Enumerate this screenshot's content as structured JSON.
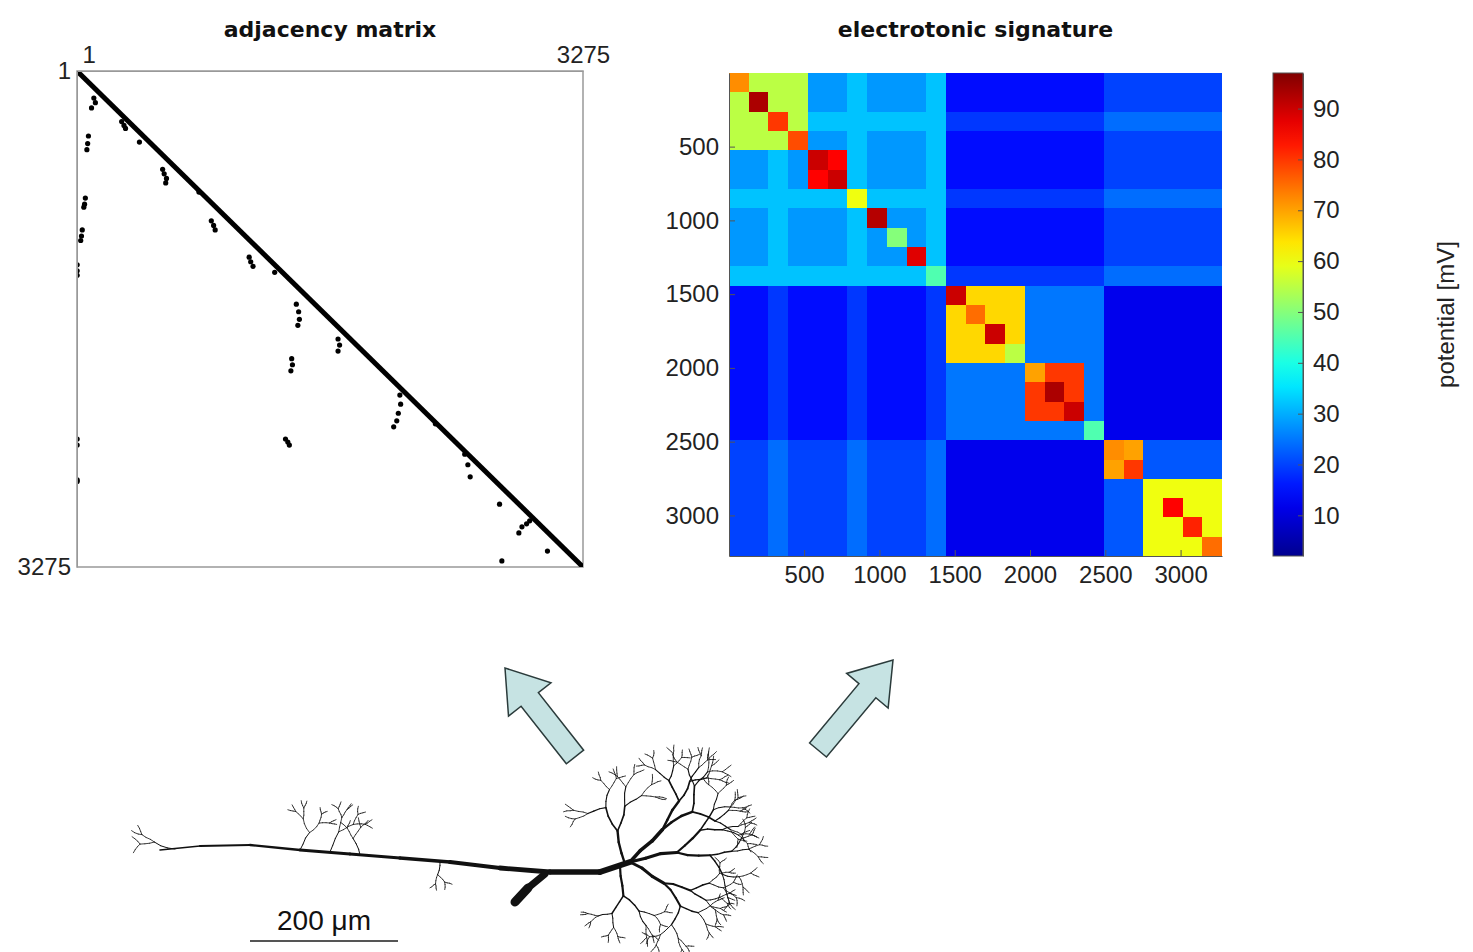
{
  "chart_data": [
    {
      "type": "scatter",
      "title": "adjacency matrix",
      "xlim": [
        1,
        3275
      ],
      "ylim": [
        3275,
        1
      ],
      "xticks": [
        1,
        3275
      ],
      "yticks": [
        1,
        3275
      ],
      "series": [
        {
          "type": "line",
          "color": "#000000",
          "x": [
            1,
            3275
          ],
          "values": [
            1,
            3275
          ]
        },
        {
          "type": "scatter",
          "color": "#000000",
          "marker": "circle",
          "x": [
            110,
            120,
            95,
            75,
            70,
            65,
            55,
            50,
            45,
            35,
            30,
            25,
            2,
            2,
            2,
            290,
            305,
            315,
            405,
            555,
            565,
            580,
            575,
            790,
            870,
            885,
            895,
            1115,
            1125,
            1140,
            1280,
            1420,
            1435,
            1440,
            1430,
            1390,
            1395,
            1385,
            1690,
            1700,
            1690,
            1350,
            1365,
            1375,
            2090,
            2095,
            2080,
            2070,
            2050,
            2320,
            2510,
            2530,
            2545,
            2735,
            2860,
            2880,
            2910,
            2930,
            2750,
            3045,
            2,
            2,
            2,
            2
          ],
          "values": [
            180,
            210,
            245,
            430,
            480,
            520,
            840,
            880,
            900,
            1050,
            1090,
            1120,
            1280,
            1320,
            1350,
            335,
            360,
            380,
            470,
            650,
            680,
            710,
            740,
            800,
            990,
            1020,
            1050,
            1230,
            1260,
            1290,
            1330,
            1540,
            1590,
            1640,
            1680,
            1900,
            1940,
            1980,
            1770,
            1810,
            1850,
            2430,
            2450,
            2470,
            2140,
            2200,
            2260,
            2310,
            2350,
            2330,
            2530,
            2600,
            2680,
            2860,
            3050,
            3010,
            2990,
            2970,
            3235,
            3170,
            2430,
            2470,
            2700,
            2710
          ]
        }
      ]
    },
    {
      "type": "heatmap",
      "title": "electrotonic signature",
      "xlim": [
        1,
        3275
      ],
      "ylim": [
        3275,
        1
      ],
      "xticks": [
        500,
        1000,
        1500,
        2000,
        2500,
        3000
      ],
      "yticks": [
        500,
        1000,
        1500,
        2000,
        2500,
        3000
      ],
      "bins": [
        1,
        132,
        263,
        394,
        525,
        656,
        787,
        918,
        1049,
        1180,
        1311,
        1442,
        1573,
        1704,
        1835,
        1966,
        2097,
        2228,
        2359,
        2490,
        2621,
        2752,
        2883,
        3014,
        3145,
        3275
      ],
      "cells": [
        [
          72,
          55,
          55,
          55,
          28,
          28,
          32,
          28,
          28,
          28,
          32,
          15,
          15,
          15,
          15,
          15,
          15,
          15,
          15,
          20,
          20,
          20,
          20,
          20,
          20
        ],
        [
          55,
          93,
          55,
          55,
          28,
          28,
          32,
          28,
          28,
          28,
          32,
          15,
          15,
          15,
          15,
          15,
          15,
          15,
          15,
          20,
          20,
          20,
          20,
          20,
          20
        ],
        [
          55,
          55,
          80,
          55,
          32,
          32,
          32,
          32,
          32,
          32,
          32,
          19,
          19,
          19,
          19,
          19,
          19,
          19,
          19,
          24,
          24,
          24,
          24,
          24,
          24
        ],
        [
          55,
          55,
          55,
          78,
          28,
          28,
          32,
          28,
          28,
          28,
          32,
          15,
          15,
          15,
          15,
          15,
          15,
          15,
          15,
          20,
          20,
          20,
          20,
          20,
          20
        ],
        [
          28,
          28,
          32,
          28,
          90,
          85,
          32,
          28,
          28,
          28,
          32,
          15,
          15,
          15,
          15,
          15,
          15,
          15,
          15,
          20,
          20,
          20,
          20,
          20,
          20
        ],
        [
          28,
          28,
          32,
          28,
          85,
          90,
          32,
          28,
          28,
          28,
          32,
          15,
          15,
          15,
          15,
          15,
          15,
          15,
          15,
          20,
          20,
          20,
          20,
          20,
          20
        ],
        [
          32,
          32,
          32,
          32,
          32,
          32,
          60,
          32,
          32,
          32,
          32,
          19,
          19,
          19,
          19,
          19,
          19,
          19,
          19,
          24,
          24,
          24,
          24,
          24,
          24
        ],
        [
          28,
          28,
          32,
          28,
          28,
          28,
          32,
          92,
          28,
          28,
          32,
          15,
          15,
          15,
          15,
          15,
          15,
          15,
          15,
          20,
          20,
          20,
          20,
          20,
          20
        ],
        [
          28,
          28,
          32,
          28,
          28,
          28,
          32,
          28,
          50,
          28,
          32,
          15,
          15,
          15,
          15,
          15,
          15,
          15,
          15,
          20,
          20,
          20,
          20,
          20,
          20
        ],
        [
          28,
          28,
          32,
          28,
          28,
          28,
          32,
          28,
          28,
          88,
          32,
          15,
          15,
          15,
          15,
          15,
          15,
          15,
          15,
          20,
          20,
          20,
          20,
          20,
          20
        ],
        [
          32,
          32,
          32,
          32,
          32,
          32,
          32,
          32,
          32,
          32,
          45,
          19,
          19,
          19,
          19,
          19,
          19,
          19,
          19,
          24,
          24,
          24,
          24,
          24,
          24
        ],
        [
          15,
          15,
          19,
          15,
          15,
          15,
          19,
          15,
          15,
          15,
          19,
          90,
          65,
          65,
          65,
          25,
          25,
          25,
          25,
          12,
          12,
          12,
          12,
          12,
          12
        ],
        [
          15,
          15,
          19,
          15,
          15,
          15,
          19,
          15,
          15,
          15,
          19,
          65,
          75,
          65,
          65,
          25,
          25,
          25,
          25,
          12,
          12,
          12,
          12,
          12,
          12
        ],
        [
          15,
          15,
          19,
          15,
          15,
          15,
          19,
          15,
          15,
          15,
          19,
          65,
          65,
          90,
          65,
          25,
          25,
          25,
          25,
          12,
          12,
          12,
          12,
          12,
          12
        ],
        [
          15,
          15,
          19,
          15,
          15,
          15,
          19,
          15,
          15,
          15,
          19,
          65,
          65,
          65,
          55,
          25,
          25,
          25,
          25,
          12,
          12,
          12,
          12,
          12,
          12
        ],
        [
          15,
          15,
          19,
          15,
          15,
          15,
          19,
          15,
          15,
          15,
          19,
          25,
          25,
          25,
          25,
          70,
          80,
          80,
          25,
          12,
          12,
          12,
          12,
          12,
          12
        ],
        [
          15,
          15,
          19,
          15,
          15,
          15,
          19,
          15,
          15,
          15,
          19,
          25,
          25,
          25,
          25,
          80,
          93,
          80,
          25,
          12,
          12,
          12,
          12,
          12,
          12
        ],
        [
          15,
          15,
          19,
          15,
          15,
          15,
          19,
          15,
          15,
          15,
          19,
          25,
          25,
          25,
          25,
          80,
          80,
          90,
          25,
          12,
          12,
          12,
          12,
          12,
          12
        ],
        [
          15,
          15,
          19,
          15,
          15,
          15,
          19,
          15,
          15,
          15,
          19,
          25,
          25,
          25,
          25,
          25,
          25,
          25,
          45,
          12,
          12,
          12,
          12,
          12,
          12
        ],
        [
          20,
          20,
          24,
          20,
          20,
          20,
          24,
          20,
          20,
          20,
          24,
          12,
          12,
          12,
          12,
          12,
          12,
          12,
          12,
          72,
          70,
          22,
          22,
          22,
          22
        ],
        [
          20,
          20,
          24,
          20,
          20,
          20,
          24,
          20,
          20,
          20,
          24,
          12,
          12,
          12,
          12,
          12,
          12,
          12,
          12,
          70,
          80,
          22,
          22,
          22,
          22
        ],
        [
          20,
          20,
          24,
          20,
          20,
          20,
          24,
          20,
          20,
          20,
          24,
          12,
          12,
          12,
          12,
          12,
          12,
          12,
          12,
          22,
          22,
          60,
          60,
          60,
          60
        ],
        [
          20,
          20,
          24,
          20,
          20,
          20,
          24,
          20,
          20,
          20,
          24,
          12,
          12,
          12,
          12,
          12,
          12,
          12,
          12,
          22,
          22,
          60,
          85,
          60,
          60
        ],
        [
          20,
          20,
          24,
          20,
          20,
          20,
          24,
          20,
          20,
          20,
          24,
          12,
          12,
          12,
          12,
          12,
          12,
          12,
          12,
          22,
          22,
          60,
          60,
          82,
          60
        ],
        [
          20,
          20,
          24,
          20,
          20,
          20,
          24,
          20,
          20,
          20,
          24,
          12,
          12,
          12,
          12,
          12,
          12,
          12,
          12,
          22,
          22,
          60,
          60,
          60,
          75
        ]
      ],
      "colorbar": {
        "label": "potential [mV]",
        "lim": [
          2,
          97
        ],
        "ticks": [
          10,
          20,
          30,
          40,
          50,
          60,
          70,
          80,
          90
        ]
      }
    }
  ],
  "figure": {
    "scale_bar": "200 μm"
  }
}
